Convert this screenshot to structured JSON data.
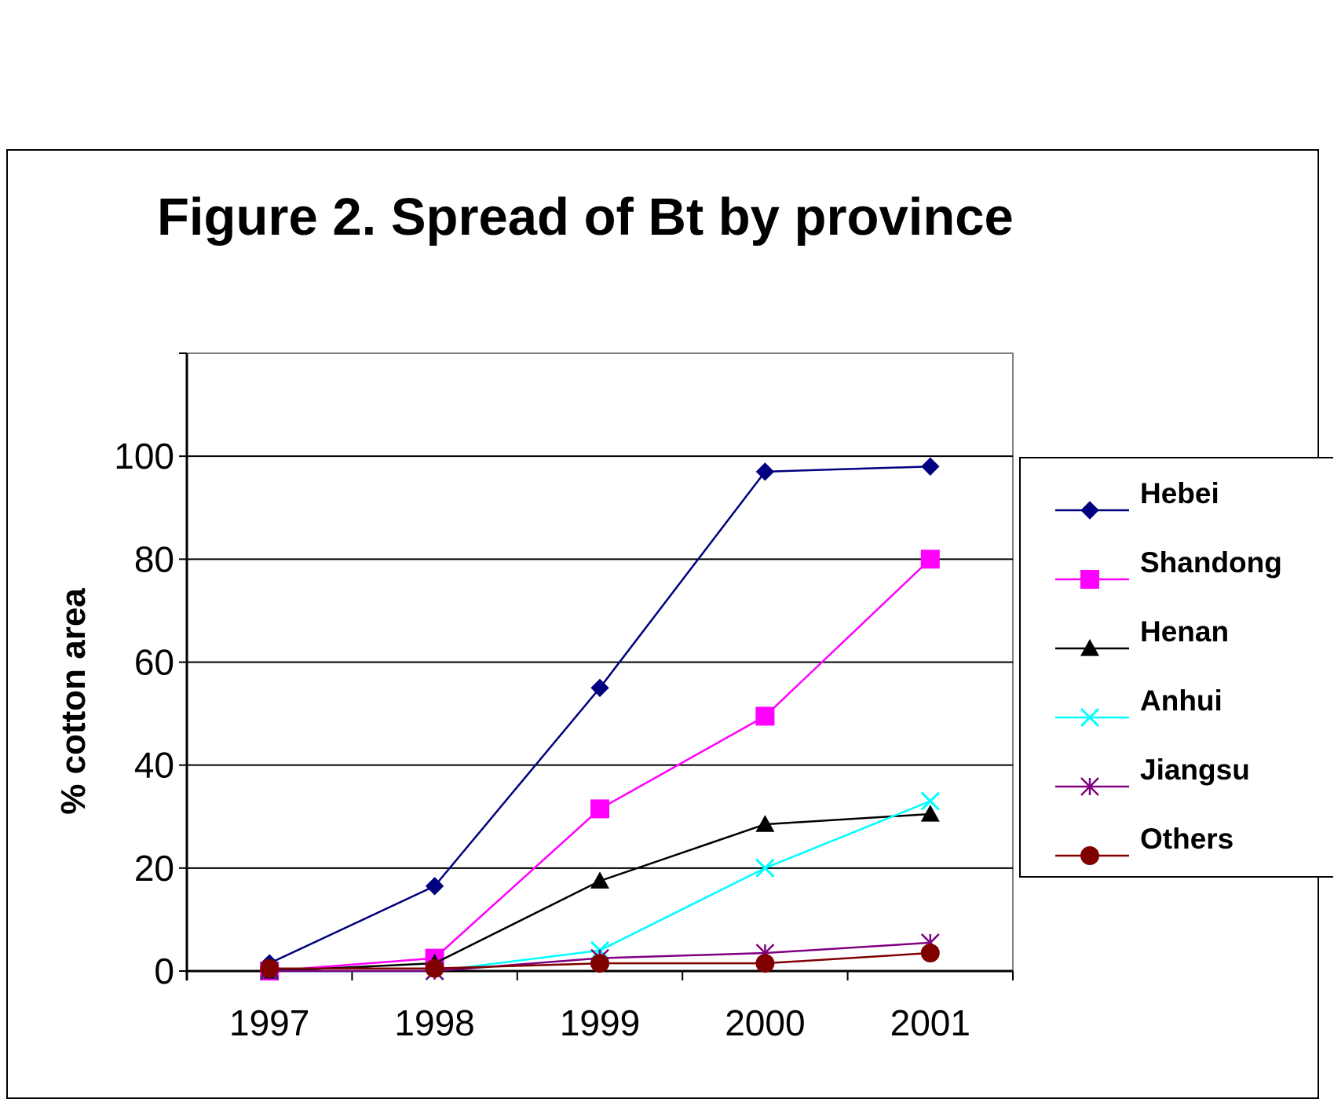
{
  "chart_data": {
    "type": "line",
    "title": "Figure 2.  Spread of Bt by province",
    "ylabel": "% cotton area",
    "xlabel": "",
    "x": [
      "1997",
      "1998",
      "1999",
      "2000",
      "2001"
    ],
    "ylim": [
      0,
      120
    ],
    "yticks": [
      "0",
      "20",
      "40",
      "60",
      "80",
      "100"
    ],
    "grid": true,
    "legend_position": "right",
    "series": [
      {
        "name": "Hebei",
        "values": [
          1.5,
          16.5,
          55,
          97,
          98
        ],
        "color": "#000080",
        "marker": "diamond"
      },
      {
        "name": "Shandong",
        "values": [
          0,
          2.5,
          31.5,
          49.5,
          80
        ],
        "color": "#ff00ff",
        "marker": "square"
      },
      {
        "name": "Henan",
        "values": [
          0,
          1.5,
          17.5,
          28.5,
          30.5
        ],
        "color": "#000000",
        "marker": "triangle"
      },
      {
        "name": "Anhui",
        "values": [
          0,
          0,
          4,
          20,
          33
        ],
        "color": "#00ffff",
        "marker": "x"
      },
      {
        "name": "Jiangsu",
        "values": [
          0,
          0,
          2.5,
          3.5,
          5.5
        ],
        "color": "#800080",
        "marker": "star"
      },
      {
        "name": "Others",
        "values": [
          0.5,
          0.5,
          1.5,
          1.5,
          3.5
        ],
        "color": "#800000",
        "marker": "circle"
      }
    ]
  }
}
